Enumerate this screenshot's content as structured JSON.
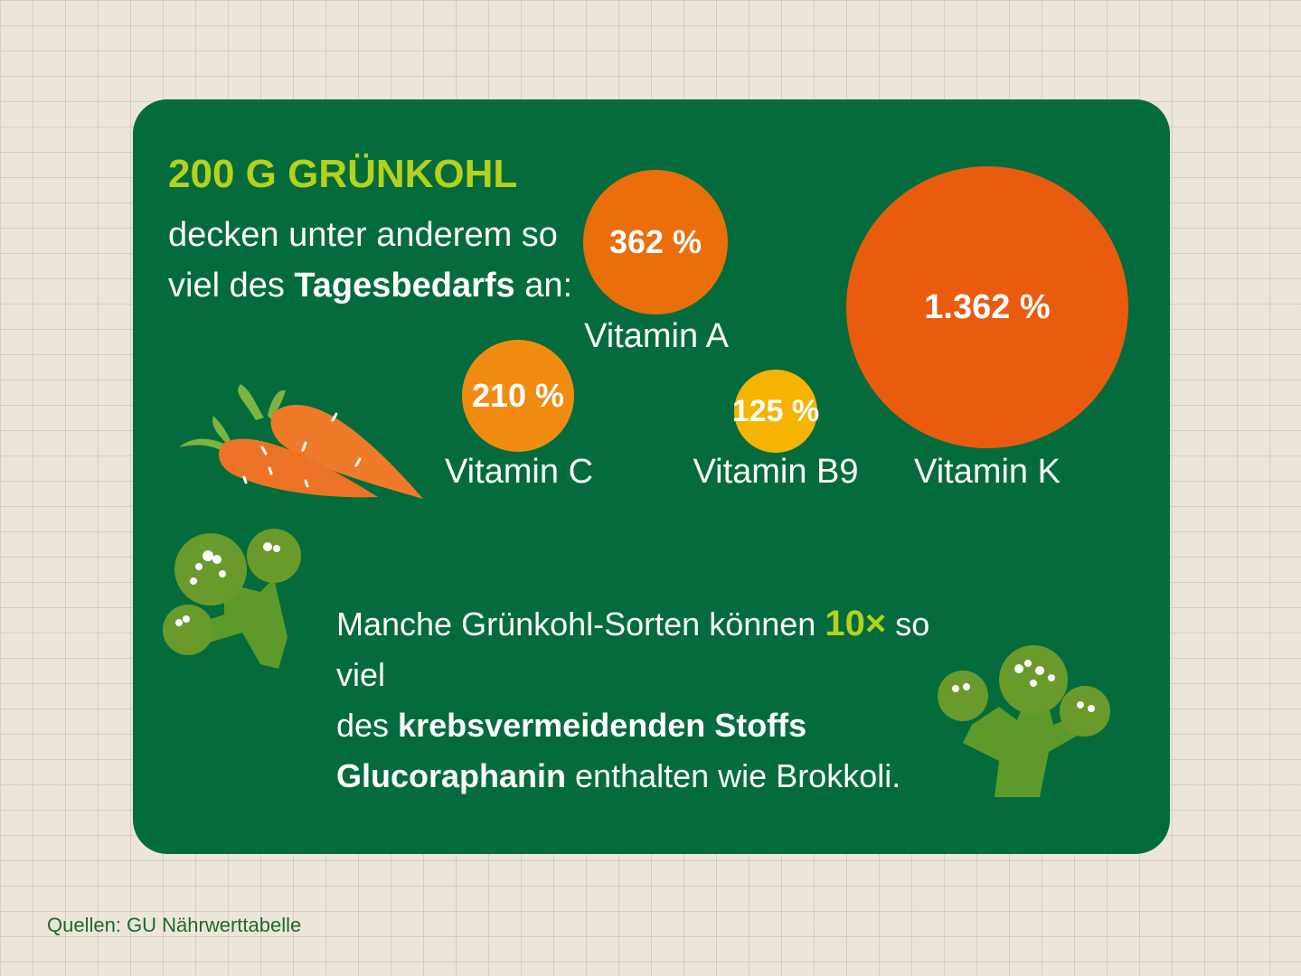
{
  "header": {
    "title": "200 G GRÜNKOHL",
    "line1": "decken unter anderem so",
    "line2_pre": "viel des ",
    "line2_bold": "Tagesbedarfs",
    "line2_post": " an:"
  },
  "chart_data": {
    "type": "bubble",
    "categories": [
      "Vitamin A",
      "Vitamin C",
      "Vitamin B9",
      "Vitamin K"
    ],
    "values": [
      362,
      210,
      125,
      1362
    ],
    "value_labels": [
      "362 %",
      "210 %",
      "125 %",
      "1.362 %"
    ],
    "unit": "% Tagesbedarf",
    "colors": [
      "#ea6f0b",
      "#f08c12",
      "#f5b400",
      "#e95c10"
    ]
  },
  "fact": {
    "pre": "Manche Grünkohl-Sorten können ",
    "highlight": "10×",
    "mid": " so viel",
    "line2_pre": "des ",
    "line2_bold": "krebsvermeidenden Stoffs",
    "line3_bold": "Glucoraphanin",
    "line3_post": " enthalten wie Brokkoli."
  },
  "source": "Quellen: GU Nährwerttabelle",
  "colors": {
    "card": "#046c3c",
    "accent": "#b5d11c",
    "carrot": "#ee7a2a",
    "broccoli": "#6a9a2c"
  },
  "icons": [
    "carrot-icon",
    "broccoli-icon"
  ]
}
